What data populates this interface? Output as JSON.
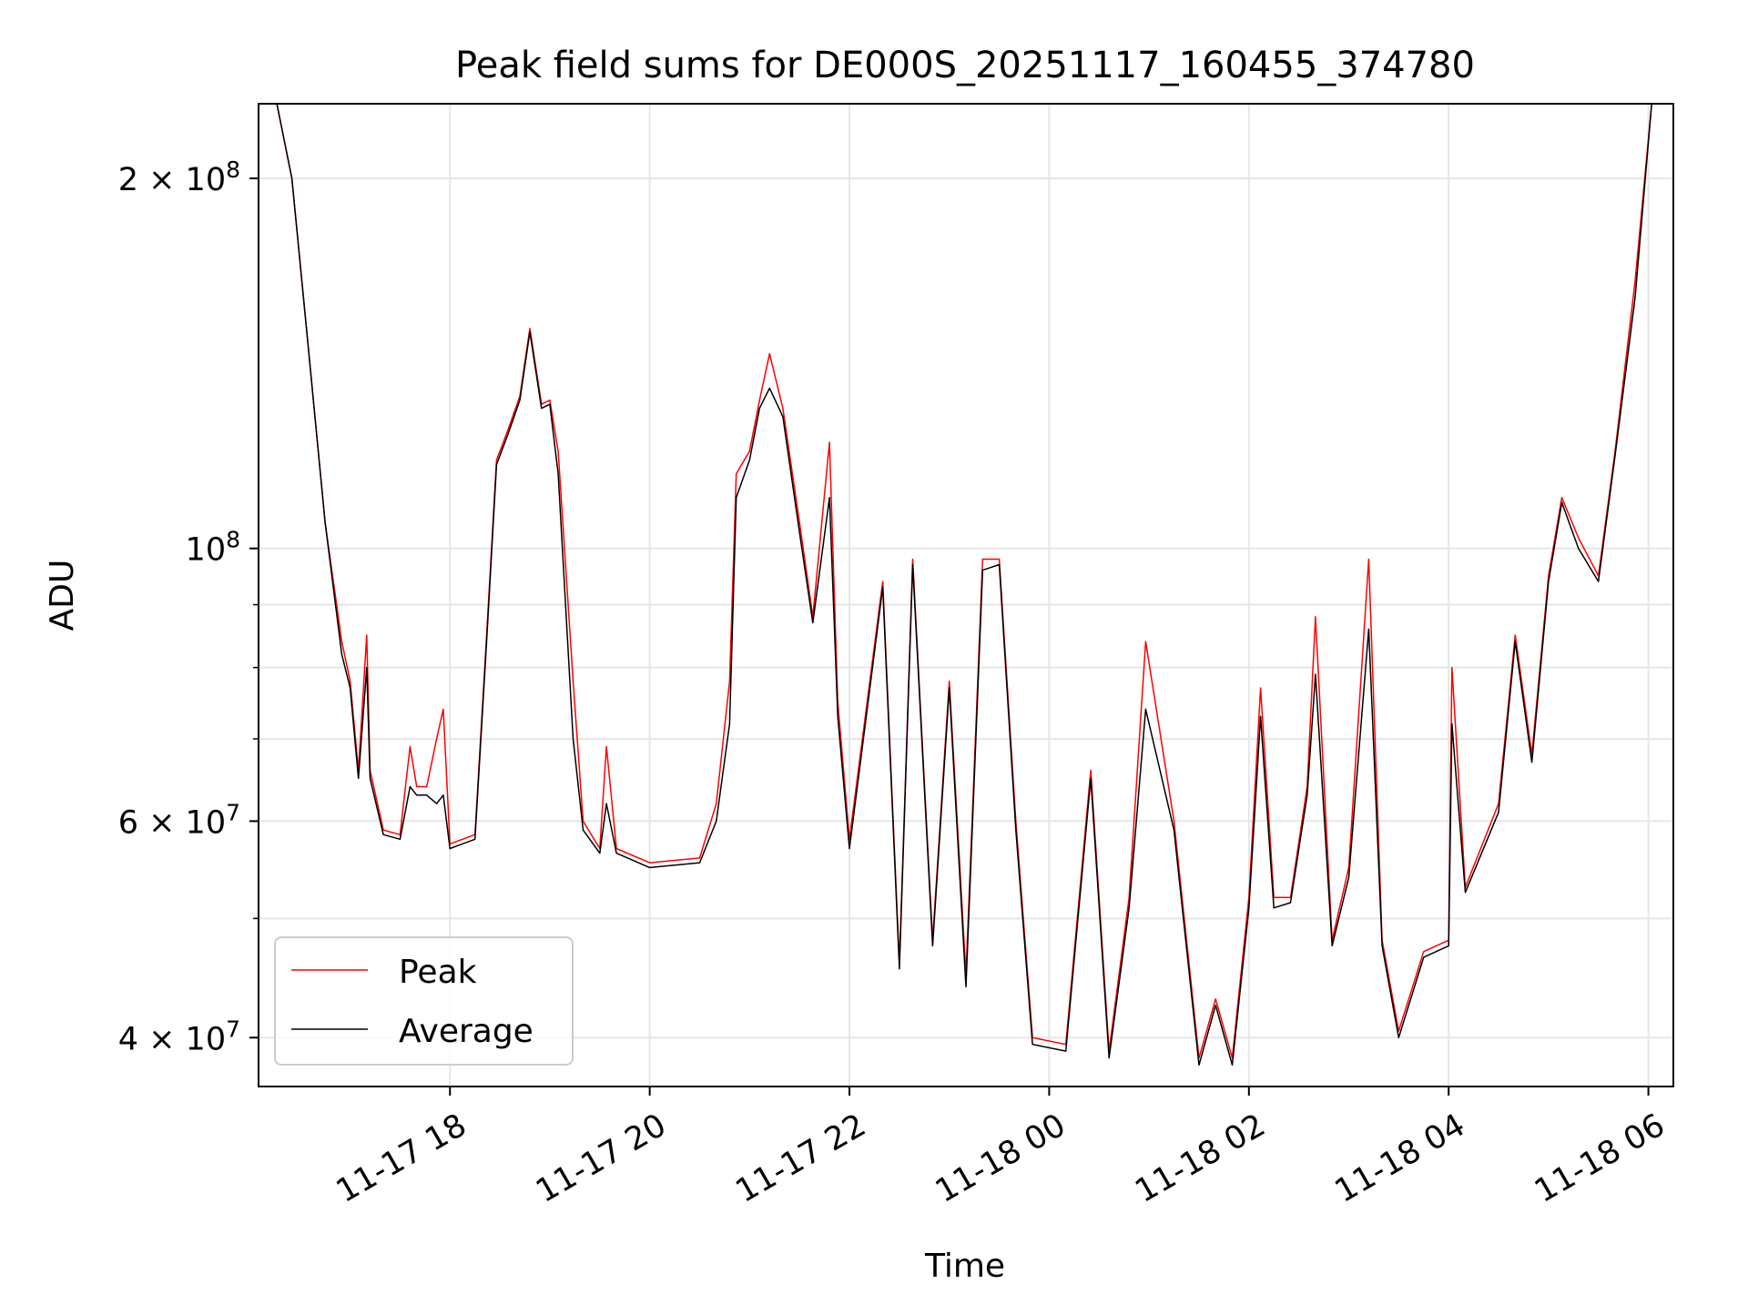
{
  "chart_data": {
    "type": "line",
    "title": "Peak field sums for DE000S_20251117_160455_374780",
    "xlabel": "Time",
    "ylabel": "ADU",
    "y_scale": "log",
    "ylim": [
      36500000,
      230000000
    ],
    "xlim": [
      "2025-11-17T16:05",
      "2025-11-18T06:15"
    ],
    "x_ticks": [
      {
        "x": "2025-11-17T18:00",
        "label": "11-17 18"
      },
      {
        "x": "2025-11-17T20:00",
        "label": "11-17 20"
      },
      {
        "x": "2025-11-17T22:00",
        "label": "11-17 22"
      },
      {
        "x": "2025-11-18T00:00",
        "label": "11-18 00"
      },
      {
        "x": "2025-11-18T02:00",
        "label": "11-18 02"
      },
      {
        "x": "2025-11-18T04:00",
        "label": "11-18 04"
      },
      {
        "x": "2025-11-18T06:00",
        "label": "11-18 06"
      }
    ],
    "y_ticks_major": [
      {
        "y": 40000000,
        "base": "4 × 10",
        "exp": "7"
      },
      {
        "y": 60000000,
        "base": "6 × 10",
        "exp": "7"
      },
      {
        "y": 100000000,
        "base": "10",
        "exp": "8"
      },
      {
        "y": 200000000,
        "base": "2 × 10",
        "exp": "8"
      }
    ],
    "y_ticks_minor": [
      50000000,
      70000000,
      80000000,
      90000000
    ],
    "grid": true,
    "legend_position": "lower-left",
    "colors": {
      "peak": "#ff0000",
      "average": "#000000",
      "grid": "#e6e6e6"
    },
    "series": [
      {
        "name": "Peak",
        "color": "#ff0000",
        "points": [
          [
            "2025-11-17T16:16",
            230000000
          ],
          [
            "2025-11-17T16:25",
            200000000
          ],
          [
            "2025-11-17T16:34",
            150000000
          ],
          [
            "2025-11-17T16:45",
            105000000
          ],
          [
            "2025-11-17T16:55",
            84000000
          ],
          [
            "2025-11-17T17:00",
            78000000
          ],
          [
            "2025-11-17T17:05",
            66000000
          ],
          [
            "2025-11-17T17:10",
            85000000
          ],
          [
            "2025-11-17T17:12",
            66000000
          ],
          [
            "2025-11-17T17:20",
            59000000
          ],
          [
            "2025-11-17T17:30",
            58500000
          ],
          [
            "2025-11-17T17:36",
            69000000
          ],
          [
            "2025-11-17T17:40",
            64000000
          ],
          [
            "2025-11-17T17:46",
            64000000
          ],
          [
            "2025-11-17T17:52",
            70000000
          ],
          [
            "2025-11-17T17:56",
            74000000
          ],
          [
            "2025-11-17T18:00",
            57500000
          ],
          [
            "2025-11-17T18:15",
            58500000
          ],
          [
            "2025-11-17T18:22",
            85000000
          ],
          [
            "2025-11-17T18:28",
            118000000
          ],
          [
            "2025-11-17T18:35",
            125000000
          ],
          [
            "2025-11-17T18:42",
            133000000
          ],
          [
            "2025-11-17T18:48",
            151000000
          ],
          [
            "2025-11-17T18:55",
            131000000
          ],
          [
            "2025-11-17T19:00",
            132000000
          ],
          [
            "2025-11-17T19:05",
            120000000
          ],
          [
            "2025-11-17T19:14",
            78000000
          ],
          [
            "2025-11-17T19:20",
            60000000
          ],
          [
            "2025-11-17T19:30",
            57000000
          ],
          [
            "2025-11-17T19:34",
            69000000
          ],
          [
            "2025-11-17T19:40",
            57000000
          ],
          [
            "2025-11-17T20:00",
            55500000
          ],
          [
            "2025-11-17T20:30",
            56000000
          ],
          [
            "2025-11-17T20:40",
            62000000
          ],
          [
            "2025-11-17T20:48",
            78000000
          ],
          [
            "2025-11-17T20:52",
            115000000
          ],
          [
            "2025-11-17T21:00",
            120000000
          ],
          [
            "2025-11-17T21:06",
            132000000
          ],
          [
            "2025-11-17T21:12",
            144000000
          ],
          [
            "2025-11-17T21:20",
            130000000
          ],
          [
            "2025-11-17T21:30",
            105000000
          ],
          [
            "2025-11-17T21:38",
            88000000
          ],
          [
            "2025-11-17T21:48",
            122000000
          ],
          [
            "2025-11-17T21:53",
            75000000
          ],
          [
            "2025-11-17T22:00",
            58000000
          ],
          [
            "2025-11-17T22:20",
            94000000
          ],
          [
            "2025-11-17T22:30",
            46000000
          ],
          [
            "2025-11-17T22:38",
            98000000
          ],
          [
            "2025-11-17T22:50",
            48000000
          ],
          [
            "2025-11-17T23:00",
            78000000
          ],
          [
            "2025-11-17T23:10",
            45000000
          ],
          [
            "2025-11-17T23:20",
            98000000
          ],
          [
            "2025-11-17T23:30",
            98000000
          ],
          [
            "2025-11-17T23:40",
            60000000
          ],
          [
            "2025-11-17T23:50",
            40000000
          ],
          [
            "2025-11-18T00:10",
            39500000
          ],
          [
            "2025-11-18T00:25",
            66000000
          ],
          [
            "2025-11-18T00:36",
            39000000
          ],
          [
            "2025-11-18T00:48",
            52000000
          ],
          [
            "2025-11-18T00:58",
            84000000
          ],
          [
            "2025-11-18T01:15",
            60000000
          ],
          [
            "2025-11-18T01:30",
            38500000
          ],
          [
            "2025-11-18T01:40",
            43000000
          ],
          [
            "2025-11-18T01:50",
            38500000
          ],
          [
            "2025-11-18T02:00",
            52000000
          ],
          [
            "2025-11-18T02:07",
            77000000
          ],
          [
            "2025-11-18T02:15",
            52000000
          ],
          [
            "2025-11-18T02:25",
            52000000
          ],
          [
            "2025-11-18T02:35",
            64000000
          ],
          [
            "2025-11-18T02:40",
            88000000
          ],
          [
            "2025-11-18T02:50",
            48000000
          ],
          [
            "2025-11-18T03:00",
            55000000
          ],
          [
            "2025-11-18T03:12",
            98000000
          ],
          [
            "2025-11-18T03:20",
            48000000
          ],
          [
            "2025-11-18T03:30",
            40500000
          ],
          [
            "2025-11-18T03:45",
            47000000
          ],
          [
            "2025-11-18T04:00",
            48000000
          ],
          [
            "2025-11-18T04:02",
            80000000
          ],
          [
            "2025-11-18T04:10",
            53000000
          ],
          [
            "2025-11-18T04:30",
            62000000
          ],
          [
            "2025-11-18T04:40",
            85000000
          ],
          [
            "2025-11-18T04:50",
            68000000
          ],
          [
            "2025-11-18T05:00",
            95000000
          ],
          [
            "2025-11-18T05:08",
            110000000
          ],
          [
            "2025-11-18T05:18",
            102000000
          ],
          [
            "2025-11-18T05:30",
            95000000
          ],
          [
            "2025-11-18T05:40",
            120000000
          ],
          [
            "2025-11-18T05:52",
            165000000
          ],
          [
            "2025-11-18T06:02",
            230000000
          ]
        ]
      },
      {
        "name": "Average",
        "color": "#000000",
        "points": [
          [
            "2025-11-17T16:16",
            230000000
          ],
          [
            "2025-11-17T16:25",
            200000000
          ],
          [
            "2025-11-17T16:34",
            150000000
          ],
          [
            "2025-11-17T16:45",
            105000000
          ],
          [
            "2025-11-17T16:55",
            82000000
          ],
          [
            "2025-11-17T17:00",
            77000000
          ],
          [
            "2025-11-17T17:05",
            65000000
          ],
          [
            "2025-11-17T17:10",
            80000000
          ],
          [
            "2025-11-17T17:12",
            65000000
          ],
          [
            "2025-11-17T17:20",
            58500000
          ],
          [
            "2025-11-17T17:30",
            58000000
          ],
          [
            "2025-11-17T17:36",
            64000000
          ],
          [
            "2025-11-17T17:40",
            63000000
          ],
          [
            "2025-11-17T17:46",
            63000000
          ],
          [
            "2025-11-17T17:52",
            62000000
          ],
          [
            "2025-11-17T17:56",
            63000000
          ],
          [
            "2025-11-17T18:00",
            57000000
          ],
          [
            "2025-11-17T18:15",
            58000000
          ],
          [
            "2025-11-17T18:22",
            84000000
          ],
          [
            "2025-11-17T18:28",
            117000000
          ],
          [
            "2025-11-17T18:35",
            124000000
          ],
          [
            "2025-11-17T18:42",
            132000000
          ],
          [
            "2025-11-17T18:48",
            150000000
          ],
          [
            "2025-11-17T18:55",
            130000000
          ],
          [
            "2025-11-17T19:00",
            131000000
          ],
          [
            "2025-11-17T19:05",
            115000000
          ],
          [
            "2025-11-17T19:14",
            70000000
          ],
          [
            "2025-11-17T19:20",
            59000000
          ],
          [
            "2025-11-17T19:30",
            56500000
          ],
          [
            "2025-11-17T19:34",
            62000000
          ],
          [
            "2025-11-17T19:40",
            56500000
          ],
          [
            "2025-11-17T20:00",
            55000000
          ],
          [
            "2025-11-17T20:30",
            55500000
          ],
          [
            "2025-11-17T20:40",
            60000000
          ],
          [
            "2025-11-17T20:48",
            72000000
          ],
          [
            "2025-11-17T20:52",
            110000000
          ],
          [
            "2025-11-17T21:00",
            118000000
          ],
          [
            "2025-11-17T21:06",
            130000000
          ],
          [
            "2025-11-17T21:12",
            135000000
          ],
          [
            "2025-11-17T21:20",
            128000000
          ],
          [
            "2025-11-17T21:30",
            103000000
          ],
          [
            "2025-11-17T21:38",
            87000000
          ],
          [
            "2025-11-17T21:48",
            110000000
          ],
          [
            "2025-11-17T21:53",
            73000000
          ],
          [
            "2025-11-17T22:00",
            57000000
          ],
          [
            "2025-11-17T22:20",
            93000000
          ],
          [
            "2025-11-17T22:30",
            45500000
          ],
          [
            "2025-11-17T22:38",
            97000000
          ],
          [
            "2025-11-17T22:50",
            47500000
          ],
          [
            "2025-11-17T23:00",
            77000000
          ],
          [
            "2025-11-17T23:10",
            44000000
          ],
          [
            "2025-11-17T23:20",
            96000000
          ],
          [
            "2025-11-17T23:30",
            97000000
          ],
          [
            "2025-11-17T23:40",
            59000000
          ],
          [
            "2025-11-17T23:50",
            39500000
          ],
          [
            "2025-11-18T00:10",
            39000000
          ],
          [
            "2025-11-18T00:25",
            65000000
          ],
          [
            "2025-11-18T00:36",
            38500000
          ],
          [
            "2025-11-18T00:48",
            51000000
          ],
          [
            "2025-11-18T00:58",
            74000000
          ],
          [
            "2025-11-18T01:15",
            59000000
          ],
          [
            "2025-11-18T01:30",
            38000000
          ],
          [
            "2025-11-18T01:40",
            42500000
          ],
          [
            "2025-11-18T01:50",
            38000000
          ],
          [
            "2025-11-18T02:00",
            51000000
          ],
          [
            "2025-11-18T02:07",
            73000000
          ],
          [
            "2025-11-18T02:15",
            51000000
          ],
          [
            "2025-11-18T02:25",
            51500000
          ],
          [
            "2025-11-18T02:35",
            63000000
          ],
          [
            "2025-11-18T02:40",
            79000000
          ],
          [
            "2025-11-18T02:50",
            47500000
          ],
          [
            "2025-11-18T03:00",
            54000000
          ],
          [
            "2025-11-18T03:12",
            86000000
          ],
          [
            "2025-11-18T03:20",
            47500000
          ],
          [
            "2025-11-18T03:30",
            40000000
          ],
          [
            "2025-11-18T03:45",
            46500000
          ],
          [
            "2025-11-18T04:00",
            47500000
          ],
          [
            "2025-11-18T04:02",
            72000000
          ],
          [
            "2025-11-18T04:10",
            52500000
          ],
          [
            "2025-11-18T04:30",
            61000000
          ],
          [
            "2025-11-18T04:40",
            84000000
          ],
          [
            "2025-11-18T04:50",
            67000000
          ],
          [
            "2025-11-18T05:00",
            94000000
          ],
          [
            "2025-11-18T05:08",
            109000000
          ],
          [
            "2025-11-18T05:18",
            100000000
          ],
          [
            "2025-11-18T05:30",
            94000000
          ],
          [
            "2025-11-18T05:40",
            119000000
          ],
          [
            "2025-11-18T05:52",
            160000000
          ],
          [
            "2025-11-18T06:02",
            230000000
          ]
        ]
      }
    ]
  }
}
